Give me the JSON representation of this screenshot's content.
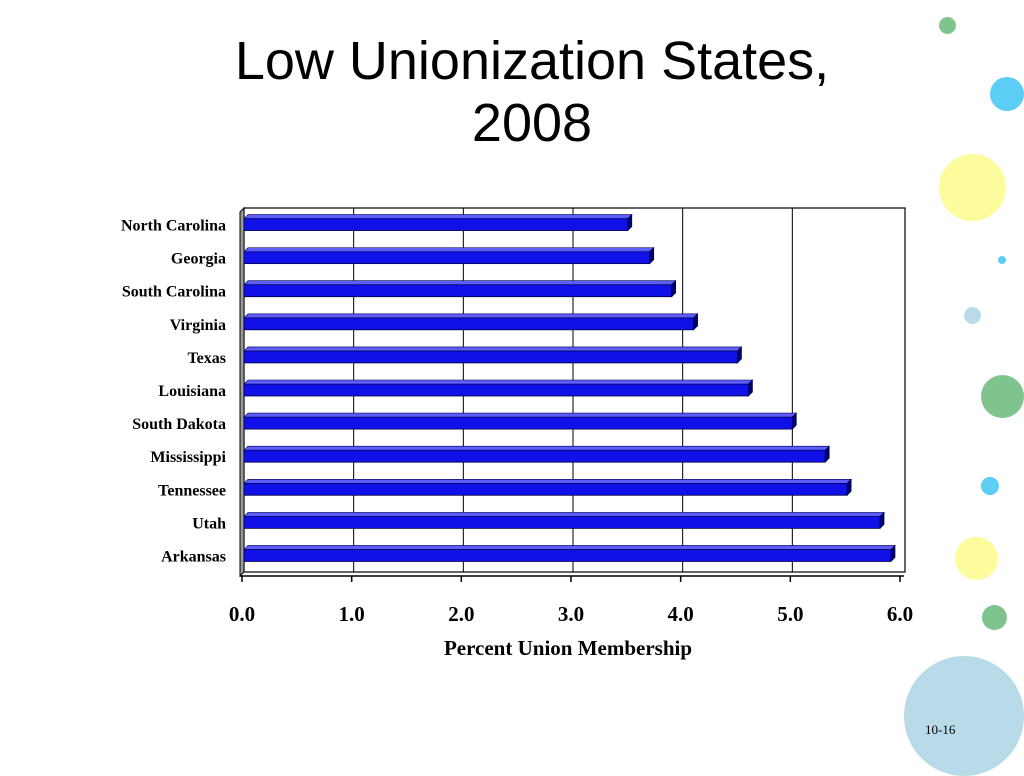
{
  "slide": {
    "title_line1": "Low Unionization States,",
    "title_line2": "2008",
    "page_number": "10-16"
  },
  "colors": {
    "bar": "#1010e8",
    "bar_top": "#5c5cff",
    "bar_side": "#00006e",
    "deco_green": "#7fc48e",
    "deco_blue": "#5ccdf5",
    "deco_yellow": "#fcfc9c",
    "deco_lightblue": "#b9dbe9"
  },
  "chart_data": {
    "type": "bar",
    "orientation": "horizontal",
    "categories": [
      "North Carolina",
      "Georgia",
      "South Carolina",
      "Virginia",
      "Texas",
      "Louisiana",
      "South Dakota",
      "Mississippi",
      "Tennessee",
      "Utah",
      "Arkansas"
    ],
    "values": [
      3.5,
      3.7,
      3.9,
      4.1,
      4.5,
      4.6,
      5.0,
      5.3,
      5.5,
      5.8,
      5.9
    ],
    "xlabel": "Percent Union Membership",
    "xlim": [
      0,
      6
    ],
    "x_ticks": [
      "0.0",
      "1.0",
      "2.0",
      "3.0",
      "4.0",
      "5.0",
      "6.0"
    ],
    "grid": true
  }
}
